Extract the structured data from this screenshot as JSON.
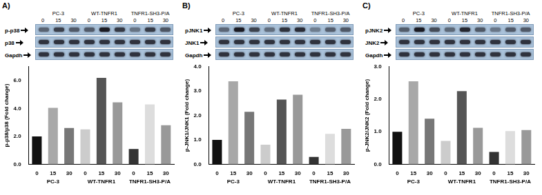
{
  "chart_data": [
    {
      "type": "bar",
      "panel": "A)",
      "blot_rows": [
        "p-p38",
        "p38",
        "Gapdh"
      ],
      "y_label": "p-p38/p38 (Fold change)",
      "categories": [
        "0",
        "15",
        "30",
        "0",
        "15",
        "30",
        "0",
        "15",
        "30"
      ],
      "groups": [
        "PC-3",
        "WT-TNFR1",
        "TNFR1-SH3-P/A"
      ],
      "values": [
        2.0,
        4.05,
        2.6,
        2.5,
        6.2,
        4.45,
        1.1,
        4.3,
        2.8
      ],
      "colors": [
        "#111111",
        "#a8a8a8",
        "#777777",
        "#cccccc",
        "#555555",
        "#999999",
        "#333333",
        "#dddddd",
        "#999999"
      ],
      "ylim": [
        0,
        7
      ],
      "yticks": [
        {
          "value": 0,
          "label": "0.0"
        },
        {
          "value": 2,
          "label": "2.0"
        },
        {
          "value": 4,
          "label": "4.0"
        },
        {
          "value": 6,
          "label": "6.0"
        }
      ],
      "grid": false
    },
    {
      "type": "bar",
      "panel": "B)",
      "blot_rows": [
        "pJNK1",
        "JNK1",
        "Gapdh"
      ],
      "y_label": "p-JNK1/JNK1 (Fold change)",
      "categories": [
        "0",
        "15",
        "30",
        "0",
        "15",
        "30",
        "0",
        "15",
        "30"
      ],
      "groups": [
        "PC-3",
        "WT-TNFR1",
        "TNFR1-SH3-P/A"
      ],
      "values": [
        1.0,
        3.4,
        2.15,
        0.8,
        2.65,
        2.85,
        0.3,
        1.25,
        1.45
      ],
      "colors": [
        "#111111",
        "#a8a8a8",
        "#777777",
        "#cccccc",
        "#555555",
        "#999999",
        "#333333",
        "#dddddd",
        "#999999"
      ],
      "ylim": [
        0,
        4
      ],
      "yticks": [
        {
          "value": 0,
          "label": "0.0"
        },
        {
          "value": 1,
          "label": "1.0"
        },
        {
          "value": 2,
          "label": "2.0"
        },
        {
          "value": 3,
          "label": "3.0"
        },
        {
          "value": 4,
          "label": "4.0"
        }
      ],
      "grid": false
    },
    {
      "type": "bar",
      "panel": "C)",
      "blot_rows": [
        "pJNK2",
        "JNK2",
        "Gapdh"
      ],
      "y_label": "p-JNK2/JNK2 (Fold change)",
      "categories": [
        "0",
        "15",
        "30",
        "0",
        "15",
        "30",
        "0",
        "15",
        "30"
      ],
      "groups": [
        "PC-3",
        "WT-TNFR1",
        "TNFR1-SH3-P/A"
      ],
      "values": [
        1.0,
        2.55,
        1.4,
        0.72,
        2.25,
        1.12,
        0.38,
        1.02,
        1.05
      ],
      "colors": [
        "#111111",
        "#a8a8a8",
        "#777777",
        "#cccccc",
        "#555555",
        "#999999",
        "#333333",
        "#dddddd",
        "#999999"
      ],
      "ylim": [
        0,
        3
      ],
      "yticks": [
        {
          "value": 0,
          "label": "0.0"
        },
        {
          "value": 1,
          "label": "1.0"
        },
        {
          "value": 2,
          "label": "2.0"
        },
        {
          "value": 3,
          "label": "3.0"
        }
      ],
      "grid": false
    }
  ]
}
